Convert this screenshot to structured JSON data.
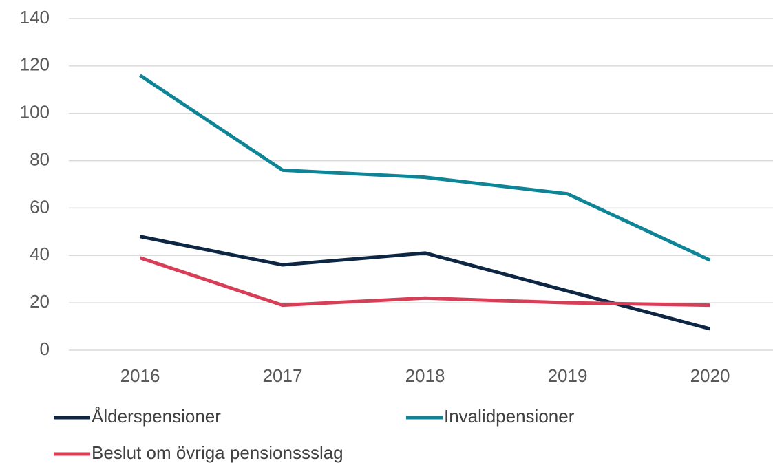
{
  "chart_data": {
    "type": "line",
    "categories": [
      "2016",
      "2017",
      "2018",
      "2019",
      "2020"
    ],
    "series": [
      {
        "name": "Ålderspensioner",
        "color": "#0d2644",
        "values": [
          48,
          36,
          41,
          25,
          9
        ]
      },
      {
        "name": "Invalidpensioner",
        "color": "#0e8597",
        "values": [
          116,
          76,
          73,
          66,
          38
        ]
      },
      {
        "name": "Beslut om övriga pensionssslag",
        "color": "#d63f57",
        "values": [
          39,
          19,
          22,
          20,
          19
        ]
      }
    ],
    "ylim": [
      0,
      140
    ],
    "yticks": [
      0,
      20,
      40,
      60,
      80,
      100,
      120,
      140
    ],
    "grid": true,
    "legend": "bottom"
  }
}
